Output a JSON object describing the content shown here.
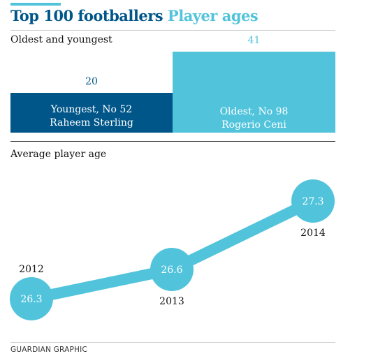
{
  "title": {
    "main": "Top 100 footballers",
    "sub": "Player ages"
  },
  "colors": {
    "dark_blue": "#005689",
    "light_blue": "#51c4dc"
  },
  "chart_data": [
    {
      "type": "bar",
      "title": "Oldest and youngest",
      "categories": [
        "Youngest, No 52",
        "Oldest, No 98"
      ],
      "players": [
        "Raheem Sterling",
        "Rogerio Ceni"
      ],
      "values": [
        20,
        41
      ],
      "value_labels": [
        "20",
        "41"
      ],
      "ylim": [
        0,
        41
      ],
      "grid": false
    },
    {
      "type": "line",
      "title": "Average player age",
      "x": [
        "2012",
        "2013",
        "2014"
      ],
      "values": [
        26.3,
        26.6,
        27.3
      ],
      "value_labels": [
        "26.3",
        "26.6",
        "27.3"
      ],
      "ylim": [
        26.0,
        27.5
      ],
      "grid": false
    }
  ],
  "footer": "GUARDIAN GRAPHIC"
}
